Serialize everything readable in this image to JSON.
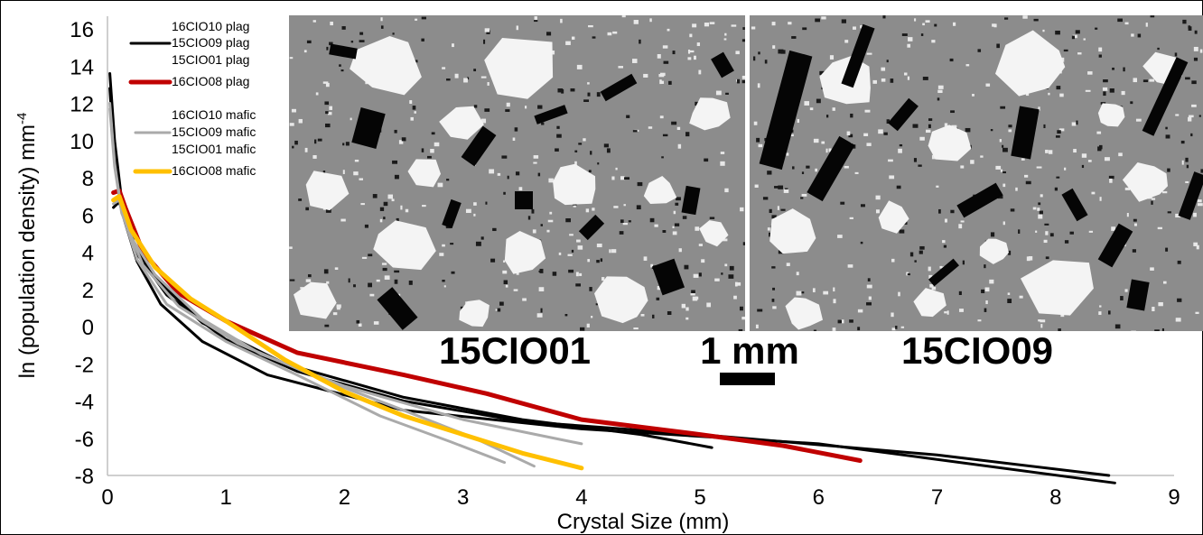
{
  "chart_data": {
    "type": "line",
    "title": "",
    "xlabel": "Crystal Size (mm)",
    "ylabel": "ln (population density) mm",
    "ylabel_superscript": "-4",
    "xlim": [
      0,
      9
    ],
    "ylim": [
      -8,
      16
    ],
    "x_ticks": [
      "0",
      "1",
      "2",
      "3",
      "4",
      "5",
      "6",
      "7",
      "8",
      "9"
    ],
    "y_ticks": [
      "16",
      "14",
      "12",
      "10",
      "8",
      "6",
      "4",
      "2",
      "0",
      "-2",
      "-4",
      "-6",
      "-8"
    ],
    "grid": false,
    "legend_position": "top-left",
    "series": [
      {
        "name": "16CIO10 plag",
        "color": "#000000",
        "width": 3,
        "x": [
          0.02,
          0.06,
          0.12,
          0.25,
          0.45,
          0.8,
          1.35,
          2.5,
          4.0,
          6.0,
          8.5
        ],
        "y": [
          12.8,
          9.0,
          6.2,
          3.5,
          1.2,
          -0.8,
          -2.6,
          -4.5,
          -5.5,
          -6.3,
          -8.4
        ]
      },
      {
        "name": "15CIO09 plag",
        "color": "#000000",
        "width": 3,
        "x": [
          0.02,
          0.06,
          0.12,
          0.25,
          0.5,
          1.0,
          1.6,
          2.5,
          3.5,
          5.0,
          7.0,
          8.45
        ],
        "y": [
          13.6,
          10.0,
          6.8,
          3.9,
          1.7,
          -0.7,
          -2.4,
          -4.0,
          -5.1,
          -5.8,
          -6.9,
          -8.0
        ]
      },
      {
        "name": "15CIO01 plag",
        "color": "#000000",
        "width": 3,
        "x": [
          0.05,
          0.1,
          0.2,
          0.4,
          0.8,
          1.5,
          2.5,
          3.5,
          4.5,
          5.1
        ],
        "y": [
          6.4,
          6.7,
          4.6,
          2.6,
          0.2,
          -2.0,
          -3.8,
          -5.0,
          -5.8,
          -6.5
        ]
      },
      {
        "name": "16CIO08 plag",
        "color": "#C00000",
        "width": 5,
        "x": [
          0.05,
          0.1,
          0.15,
          0.3,
          0.6,
          1.0,
          1.6,
          2.5,
          3.2,
          4.0,
          5.0,
          5.7,
          6.35
        ],
        "y": [
          7.2,
          7.3,
          6.4,
          4.0,
          1.8,
          0.3,
          -1.4,
          -2.6,
          -3.6,
          -5.0,
          -5.8,
          -6.4,
          -7.2
        ]
      },
      {
        "name": "16CIO10 mafic",
        "color": "#AAAAAA",
        "width": 3,
        "x": [
          0.02,
          0.06,
          0.12,
          0.25,
          0.5,
          1.0,
          1.6,
          2.3,
          2.9,
          3.35
        ],
        "y": [
          12.0,
          8.8,
          6.2,
          3.6,
          1.2,
          -0.8,
          -2.6,
          -4.8,
          -6.2,
          -7.3
        ]
      },
      {
        "name": "15CIO09 mafic",
        "color": "#AAAAAA",
        "width": 3,
        "x": [
          0.02,
          0.06,
          0.12,
          0.3,
          0.6,
          1.1,
          1.8,
          2.5,
          3.1,
          3.6
        ],
        "y": [
          11.7,
          8.6,
          6.1,
          3.3,
          1.1,
          -0.9,
          -2.8,
          -4.5,
          -6.0,
          -7.5
        ]
      },
      {
        "name": "15CIO01 mafic",
        "color": "#AAAAAA",
        "width": 3,
        "x": [
          0.05,
          0.1,
          0.2,
          0.4,
          0.8,
          1.3,
          2.0,
          3.0,
          4.0
        ],
        "y": [
          6.6,
          6.8,
          4.8,
          2.8,
          0.4,
          -1.5,
          -3.2,
          -5.0,
          -6.3
        ]
      },
      {
        "name": "16CIO08 mafic",
        "color": "#FFC000",
        "width": 5,
        "x": [
          0.05,
          0.1,
          0.2,
          0.4,
          0.7,
          1.0,
          1.5,
          2.0,
          2.5,
          3.0,
          3.5,
          4.0
        ],
        "y": [
          6.8,
          7.0,
          5.2,
          3.2,
          1.5,
          0.3,
          -1.8,
          -3.5,
          -4.8,
          -5.8,
          -6.8,
          -7.6
        ]
      }
    ]
  },
  "insets": {
    "left_label": "15CIO01",
    "right_label": "15CIO09",
    "scale_label": "1 mm"
  }
}
